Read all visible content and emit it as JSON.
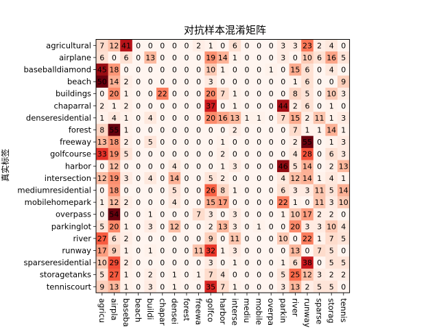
{
  "chart_data": {
    "type": "heatmap",
    "title": "对抗样本混淆矩阵",
    "xlabel": "",
    "ylabel": "真实标签",
    "colormap": "Reds",
    "color_low": "#fff5f0",
    "color_high": "#67000d",
    "vmin": 0,
    "vmax": 50,
    "row_labels": [
      "agricultural",
      "airplane",
      "baseballdiamond",
      "beach",
      "buildings",
      "chaparral",
      "denseresidential",
      "forest",
      "freeway",
      "golfcourse",
      "harbor",
      "intersection",
      "mediumresidential",
      "mobilehomepark",
      "overpass",
      "parkinglot",
      "river",
      "runway",
      "sparseresidential",
      "storagetanks",
      "tenniscourt"
    ],
    "col_labels": [
      "agricu",
      "airpla",
      "baseba",
      "beach",
      "buildi",
      "chapar",
      "densei",
      "forest",
      "freewa",
      "golfco",
      "harbor",
      "interse",
      "mediu",
      "mobile",
      "overpa",
      "parkin",
      "river",
      "runway",
      "sparse",
      "storag",
      "tennis"
    ],
    "values": [
      [
        7,
        12,
        41,
        0,
        0,
        0,
        0,
        0,
        2,
        1,
        0,
        6,
        0,
        0,
        0,
        3,
        3,
        23,
        2,
        4,
        0
      ],
      [
        6,
        0,
        6,
        0,
        13,
        0,
        0,
        0,
        0,
        19,
        14,
        1,
        0,
        0,
        0,
        3,
        0,
        10,
        6,
        16,
        5
      ],
      [
        45,
        18,
        0,
        0,
        0,
        0,
        0,
        0,
        0,
        10,
        1,
        0,
        0,
        0,
        1,
        0,
        15,
        6,
        0,
        4,
        0
      ],
      [
        50,
        14,
        2,
        0,
        0,
        0,
        0,
        0,
        0,
        3,
        0,
        0,
        0,
        0,
        0,
        0,
        1,
        6,
        0,
        0,
        9
      ],
      [
        0,
        20,
        1,
        0,
        0,
        22,
        0,
        0,
        0,
        20,
        7,
        1,
        0,
        0,
        0,
        0,
        8,
        5,
        0,
        10,
        3
      ],
      [
        2,
        1,
        2,
        0,
        0,
        0,
        0,
        0,
        0,
        37,
        0,
        1,
        0,
        0,
        0,
        44,
        2,
        6,
        0,
        1,
        0
      ],
      [
        1,
        4,
        1,
        0,
        4,
        0,
        0,
        0,
        0,
        20,
        16,
        13,
        1,
        1,
        0,
        7,
        15,
        2,
        11,
        1,
        3
      ],
      [
        8,
        55,
        1,
        0,
        0,
        0,
        0,
        0,
        0,
        0,
        0,
        2,
        0,
        0,
        0,
        0,
        7,
        1,
        1,
        14,
        1
      ],
      [
        13,
        18,
        2,
        0,
        5,
        0,
        0,
        0,
        0,
        0,
        1,
        0,
        0,
        0,
        0,
        0,
        2,
        55,
        0,
        1,
        3
      ],
      [
        33,
        19,
        5,
        0,
        0,
        0,
        0,
        0,
        0,
        0,
        2,
        0,
        0,
        0,
        0,
        0,
        4,
        28,
        0,
        6,
        3
      ],
      [
        0,
        12,
        0,
        0,
        0,
        0,
        4,
        0,
        0,
        0,
        1,
        3,
        0,
        0,
        0,
        46,
        5,
        14,
        0,
        2,
        13
      ],
      [
        12,
        19,
        3,
        0,
        4,
        0,
        14,
        0,
        0,
        5,
        2,
        0,
        0,
        0,
        0,
        4,
        12,
        14,
        1,
        4,
        1
      ],
      [
        0,
        18,
        0,
        0,
        0,
        0,
        5,
        0,
        0,
        26,
        8,
        1,
        0,
        0,
        0,
        6,
        3,
        3,
        11,
        5,
        14
      ],
      [
        1,
        12,
        2,
        0,
        0,
        0,
        4,
        0,
        0,
        15,
        17,
        0,
        0,
        0,
        0,
        22,
        1,
        0,
        11,
        3,
        10
      ],
      [
        0,
        54,
        0,
        0,
        1,
        0,
        0,
        0,
        7,
        3,
        0,
        3,
        0,
        0,
        0,
        1,
        10,
        17,
        2,
        2,
        0
      ],
      [
        5,
        20,
        1,
        0,
        3,
        0,
        12,
        0,
        0,
        2,
        13,
        3,
        0,
        1,
        0,
        0,
        20,
        3,
        3,
        10,
        4
      ],
      [
        27,
        6,
        2,
        0,
        0,
        0,
        0,
        0,
        0,
        9,
        0,
        11,
        0,
        0,
        0,
        10,
        0,
        22,
        1,
        7,
        5
      ],
      [
        17,
        9,
        1,
        0,
        1,
        0,
        0,
        0,
        11,
        32,
        1,
        3,
        0,
        0,
        0,
        0,
        13,
        0,
        7,
        5,
        0
      ],
      [
        10,
        29,
        2,
        0,
        0,
        0,
        0,
        0,
        0,
        3,
        0,
        1,
        0,
        0,
        0,
        1,
        6,
        38,
        0,
        5,
        5
      ],
      [
        5,
        27,
        1,
        0,
        2,
        0,
        1,
        0,
        1,
        7,
        4,
        0,
        0,
        0,
        0,
        5,
        25,
        12,
        3,
        2,
        2
      ],
      [
        9,
        13,
        1,
        0,
        3,
        0,
        1,
        0,
        0,
        35,
        7,
        1,
        0,
        0,
        0,
        3,
        13,
        2,
        5,
        5,
        0
      ]
    ]
  }
}
